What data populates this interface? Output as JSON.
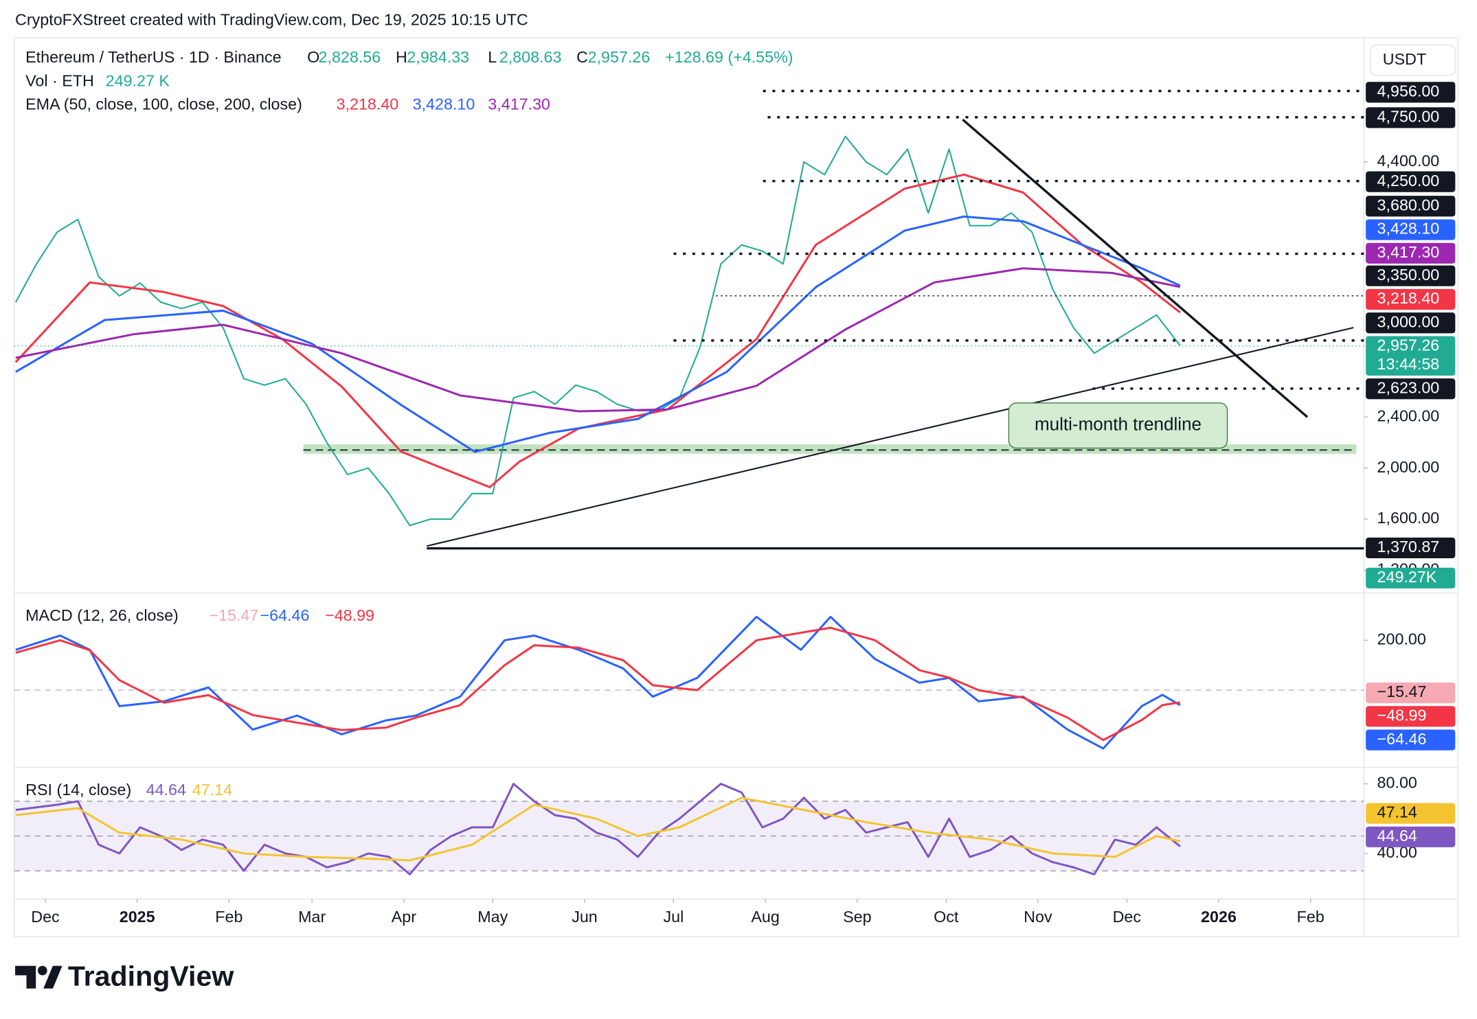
{
  "attribution": "CryptoFXStreet created with TradingView.com, Dec 19, 2025 10:15 UTC",
  "currency": "USDT",
  "annotation": "multi-month trendline",
  "logo": "TradingView",
  "chart_data": [
    {
      "type": "line",
      "title": "Ethereum / TetherUS · 1D · Binance",
      "ohlc": [
        {
          "label": "O",
          "value": "2,828.56"
        },
        {
          "label": "H",
          "value": "2,984.33"
        },
        {
          "label": "L",
          "value": "2,808.63"
        },
        {
          "label": "C",
          "value": "2,957.26"
        }
      ],
      "change": "+128.69 (+4.55%)",
      "volume": {
        "label": "Vol · ETH",
        "legend_value": "249.27 K",
        "axis_label": "249.27K",
        "color": "#22ab94"
      },
      "ema_label": "EMA (50, close, 100, close, 200, close)",
      "xlim": [
        -10.5,
        445
      ],
      "xticks": [
        {
          "value": 0,
          "label": "Dec"
        },
        {
          "value": 31,
          "label": "2025"
        },
        {
          "value": 62,
          "label": "Feb"
        },
        {
          "value": 90,
          "label": "Mar"
        },
        {
          "value": 121,
          "label": "Apr"
        },
        {
          "value": 151,
          "label": "May"
        },
        {
          "value": 182,
          "label": "Jun"
        },
        {
          "value": 212,
          "label": "Jul"
        },
        {
          "value": 243,
          "label": "Aug"
        },
        {
          "value": 274,
          "label": "Sep"
        },
        {
          "value": 304,
          "label": "Oct"
        },
        {
          "value": 335,
          "label": "Nov"
        },
        {
          "value": 365,
          "label": "Dec"
        },
        {
          "value": 396,
          "label": "2026"
        },
        {
          "value": 427,
          "label": "Feb"
        }
      ],
      "ylim": [
        1020,
        5374
      ],
      "yticks": [
        {
          "value": 4400,
          "label": "4,400.00"
        },
        {
          "value": 2400,
          "label": "2,400.00"
        },
        {
          "value": 2000,
          "label": "2,000.00"
        },
        {
          "value": 1600,
          "label": "1,600.00"
        },
        {
          "value": 1200,
          "label": "1,200.00"
        }
      ],
      "levels": [
        {
          "value": 4956,
          "label": "4,956.00"
        },
        {
          "value": 4750,
          "label": "4,750.00"
        },
        {
          "value": 4250,
          "label": "4,250.00"
        },
        {
          "value": 3680,
          "label": "3,680.00"
        },
        {
          "value": 3350,
          "label": "3,350.00"
        },
        {
          "value": 3000,
          "label": "3,000.00"
        },
        {
          "value": 2623,
          "label": "2,623.00"
        },
        {
          "value": 1370.87,
          "label": "1,370.87"
        }
      ],
      "last_price": {
        "value": 2957.26,
        "countdown": "13:44:58",
        "color": "#22ab94"
      },
      "series": [
        {
          "color": "#22ab94",
          "x": [
            -10,
            -3,
            4,
            11,
            18,
            25,
            32,
            39,
            46,
            53,
            60,
            67,
            74,
            81,
            88,
            95,
            102,
            109,
            116,
            123,
            130,
            137,
            144,
            151,
            158,
            165,
            172,
            179,
            186,
            193,
            200,
            207,
            214,
            221,
            228,
            235,
            242,
            249,
            256,
            263,
            270,
            277,
            284,
            291,
            298,
            305,
            312,
            319,
            326,
            333,
            340,
            347,
            354,
            361,
            368,
            375,
            383
          ],
          "values": [
            3300,
            3600,
            3850,
            3950,
            3500,
            3350,
            3450,
            3300,
            3250,
            3300,
            3100,
            2700,
            2650,
            2700,
            2500,
            2200,
            1950,
            2000,
            1800,
            1550,
            1600,
            1600,
            1800,
            1800,
            2550,
            2600,
            2500,
            2650,
            2600,
            2500,
            2450,
            2450,
            2550,
            2950,
            3600,
            3750,
            3700,
            3600,
            4400,
            4300,
            4600,
            4400,
            4300,
            4500,
            4000,
            4500,
            3900,
            3900,
            4000,
            3850,
            3400,
            3100,
            2900,
            3000,
            3100,
            3200,
            2960
          ]
        },
        {
          "color": "#f23645",
          "x": [
            -10,
            15,
            40,
            60,
            80,
            100,
            120,
            150,
            160,
            180,
            210,
            240,
            260,
            290,
            310,
            330,
            350,
            370,
            383
          ],
          "values": [
            2830,
            3455,
            3380,
            3270,
            3010,
            2640,
            2130,
            1850,
            2050,
            2310,
            2460,
            3010,
            3750,
            4190,
            4300,
            4160,
            3750,
            3455,
            3220
          ],
          "last": {
            "value": 3218.4,
            "label": "3,218.40"
          }
        },
        {
          "color": "#2962ff",
          "x": [
            -10,
            20,
            60,
            90,
            120,
            145,
            170,
            200,
            230,
            260,
            290,
            310,
            330,
            350,
            370,
            383
          ],
          "values": [
            2754,
            3160,
            3234,
            2975,
            2496,
            2127,
            2275,
            2385,
            2754,
            3418,
            3861,
            3972,
            3935,
            3750,
            3566,
            3430
          ],
          "last": {
            "value": 3428.1,
            "label": "3,428.10"
          }
        },
        {
          "color": "#9c27b0",
          "x": [
            -10,
            30,
            60,
            100,
            140,
            180,
            210,
            240,
            270,
            300,
            330,
            360,
            383
          ],
          "values": [
            2865,
            3050,
            3123,
            2900,
            2570,
            2445,
            2460,
            2645,
            3086,
            3455,
            3566,
            3530,
            3420
          ],
          "last": {
            "value": 3417.3,
            "label": "3,417.30"
          }
        }
      ]
    },
    {
      "type": "line",
      "title": "MACD (12, 26, close)",
      "xlim": [
        -10.5,
        445
      ],
      "ylim": [
        -309,
        389
      ],
      "yticks": [
        {
          "value": 200,
          "label": "200.00"
        }
      ],
      "histogram": {
        "value": -15.47,
        "label": "−15.47",
        "color": "#f7a9b3"
      },
      "series": [
        {
          "color": "#2962ff",
          "x": [
            -10,
            5,
            15,
            25,
            40,
            55,
            70,
            85,
            100,
            115,
            125,
            140,
            155,
            165,
            180,
            195,
            205,
            220,
            240,
            255,
            265,
            280,
            295,
            305,
            315,
            330,
            345,
            357,
            370,
            377,
            383
          ],
          "values": [
            162,
            219,
            162,
            -64,
            -45,
            11,
            -158,
            -102,
            -177,
            -121,
            -102,
            -26,
            200,
            219,
            162,
            87,
            -26,
            49,
            294,
            162,
            294,
            125,
            30,
            49,
            -45,
            -26,
            -158,
            -234,
            -64,
            -19,
            -60
          ],
          "last": {
            "value": -64.46,
            "label": "−64.46"
          }
        },
        {
          "color": "#f23645",
          "x": [
            -10,
            5,
            15,
            25,
            40,
            55,
            70,
            85,
            100,
            115,
            125,
            140,
            155,
            165,
            180,
            195,
            205,
            220,
            240,
            255,
            265,
            280,
            295,
            305,
            315,
            330,
            345,
            357,
            370,
            377,
            383
          ],
          "values": [
            150,
            200,
            160,
            40,
            -50,
            -20,
            -100,
            -130,
            -160,
            -150,
            -110,
            -60,
            100,
            180,
            170,
            120,
            20,
            0,
            200,
            230,
            250,
            200,
            80,
            50,
            0,
            -30,
            -110,
            -200,
            -120,
            -60,
            -49
          ],
          "last": {
            "value": -48.99,
            "label": "−48.99"
          }
        }
      ]
    },
    {
      "type": "line",
      "title": "RSI (14, close)",
      "xlim": [
        -10.5,
        445
      ],
      "ylim": [
        13.8,
        89.5
      ],
      "yticks": [
        {
          "value": 80,
          "label": "80.00"
        },
        {
          "value": 40,
          "label": "40.00"
        }
      ],
      "bands": [
        70,
        50,
        30
      ],
      "series": [
        {
          "color": "#7e57c2",
          "x": [
            -10,
            4,
            11,
            18,
            25,
            32,
            39,
            46,
            53,
            60,
            67,
            74,
            81,
            88,
            95,
            102,
            109,
            116,
            123,
            130,
            137,
            144,
            151,
            158,
            165,
            172,
            179,
            186,
            193,
            200,
            207,
            214,
            221,
            228,
            235,
            242,
            249,
            256,
            263,
            270,
            277,
            284,
            291,
            298,
            305,
            312,
            319,
            326,
            333,
            340,
            347,
            354,
            361,
            368,
            375,
            383
          ],
          "values": [
            65,
            68,
            70,
            45,
            40,
            55,
            50,
            42,
            48,
            45,
            30,
            45,
            40,
            38,
            32,
            35,
            40,
            38,
            28,
            42,
            50,
            55,
            55,
            80,
            70,
            62,
            60,
            52,
            48,
            38,
            52,
            60,
            70,
            80,
            75,
            55,
            60,
            72,
            60,
            65,
            52,
            55,
            58,
            38,
            60,
            38,
            42,
            50,
            40,
            35,
            32,
            28,
            48,
            45,
            55,
            44
          ],
          "last": 44.64
        },
        {
          "color": "#f4c430",
          "x": [
            -10,
            11,
            25,
            46,
            67,
            88,
            109,
            123,
            144,
            165,
            186,
            200,
            214,
            235,
            256,
            277,
            298,
            319,
            340,
            361,
            375,
            383
          ],
          "values": [
            62,
            66,
            52,
            48,
            40,
            38,
            37,
            36,
            45,
            68,
            60,
            50,
            55,
            72,
            65,
            58,
            52,
            48,
            40,
            38,
            50,
            47
          ],
          "last": 47.14
        }
      ]
    }
  ]
}
